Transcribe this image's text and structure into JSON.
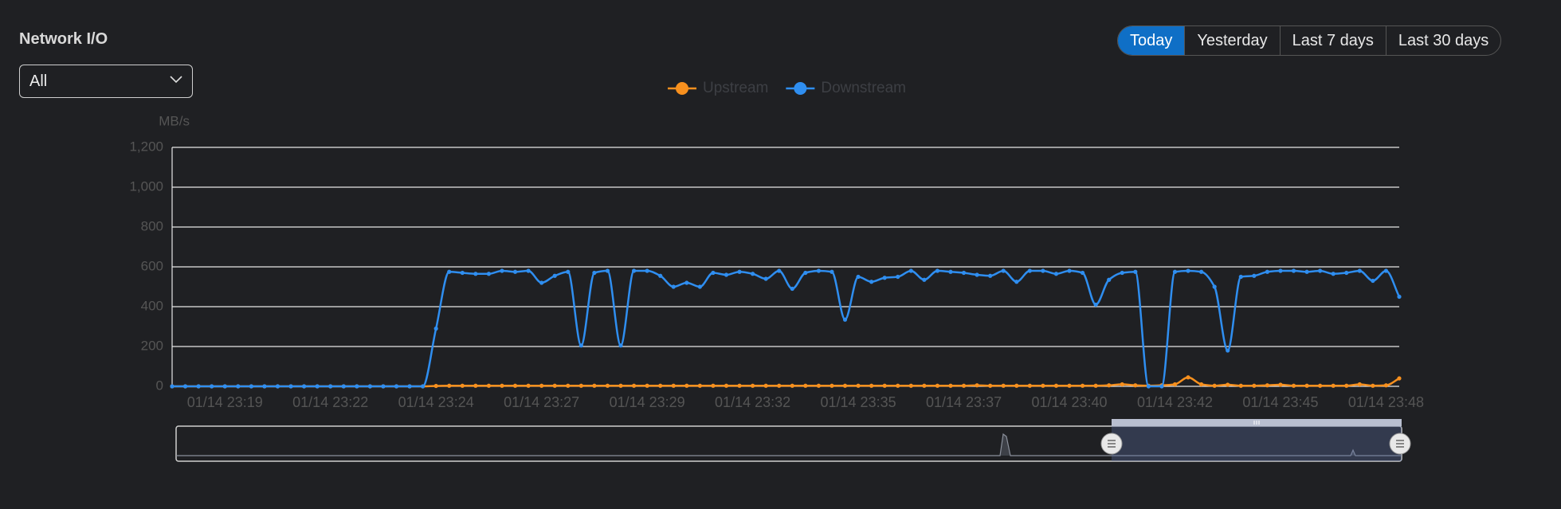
{
  "header": {
    "title": "Network I/O",
    "filter": "All",
    "ranges": [
      "Today",
      "Yesterday",
      "Last 7 days",
      "Last 30 days"
    ],
    "active_range": 0
  },
  "chart_data": {
    "type": "line",
    "y_label": "MB/s",
    "categories": [
      null,
      null,
      null,
      null,
      "01/14 23:19",
      null,
      null,
      null,
      null,
      null,
      null,
      null,
      "01/14 23:22",
      null,
      null,
      null,
      null,
      null,
      null,
      null,
      "01/14 23:24",
      null,
      null,
      null,
      null,
      null,
      null,
      null,
      "01/14 23:27",
      null,
      null,
      null,
      null,
      null,
      null,
      null,
      "01/14 23:29",
      null,
      null,
      null,
      null,
      null,
      null,
      null,
      "01/14 23:32",
      null,
      null,
      null,
      null,
      null,
      null,
      null,
      "01/14 23:35",
      null,
      null,
      null,
      null,
      null,
      null,
      null,
      "01/14 23:37",
      null,
      null,
      null,
      null,
      null,
      null,
      null,
      "01/14 23:40",
      null,
      null,
      null,
      null,
      null,
      null,
      null,
      "01/14 23:42",
      null,
      null,
      null,
      null,
      null,
      null,
      null,
      "01/14 23:45",
      null,
      null,
      null,
      null,
      null,
      null,
      null,
      "01/14 23:48",
      null
    ],
    "series": [
      {
        "name": "Upstream",
        "color": "#f7901e",
        "values": [
          0,
          0,
          0,
          0,
          0,
          0,
          0,
          0,
          0,
          0,
          0,
          0,
          0,
          0,
          0,
          0,
          0,
          0,
          0,
          0,
          2,
          3,
          3,
          3,
          3,
          3,
          3,
          3,
          3,
          3,
          3,
          3,
          3,
          3,
          3,
          3,
          3,
          3,
          3,
          3,
          3,
          3,
          3,
          3,
          3,
          3,
          3,
          3,
          3,
          3,
          3,
          3,
          3,
          3,
          3,
          3,
          3,
          3,
          3,
          3,
          3,
          5,
          3,
          3,
          3,
          3,
          3,
          3,
          3,
          3,
          3,
          5,
          10,
          5,
          3,
          5,
          10,
          45,
          10,
          3,
          8,
          3,
          3,
          5,
          8,
          3,
          3,
          3,
          3,
          3,
          10,
          3,
          5,
          40
        ]
      },
      {
        "name": "Downstream",
        "color": "#2f8ef0",
        "values": [
          0,
          0,
          0,
          0,
          0,
          0,
          0,
          0,
          0,
          0,
          0,
          0,
          0,
          0,
          0,
          0,
          0,
          0,
          0,
          0,
          290,
          575,
          570,
          565,
          565,
          580,
          575,
          580,
          520,
          555,
          575,
          205,
          570,
          580,
          205,
          580,
          580,
          555,
          500,
          520,
          500,
          570,
          560,
          575,
          565,
          540,
          580,
          490,
          570,
          580,
          575,
          335,
          550,
          525,
          545,
          550,
          580,
          535,
          580,
          575,
          570,
          560,
          555,
          580,
          525,
          580,
          580,
          565,
          580,
          570,
          410,
          535,
          570,
          575,
          0,
          0,
          575,
          580,
          575,
          500,
          180,
          550,
          555,
          575,
          580,
          580,
          575,
          580,
          565,
          570,
          580,
          530,
          580,
          450
        ]
      }
    ],
    "ylim": [
      0,
      1200
    ],
    "yticks": [
      0,
      200,
      400,
      600,
      800,
      {
        "value": 1000,
        "label": "1,000"
      },
      {
        "value": 1200,
        "label": "1,200"
      }
    ],
    "grid": true
  }
}
